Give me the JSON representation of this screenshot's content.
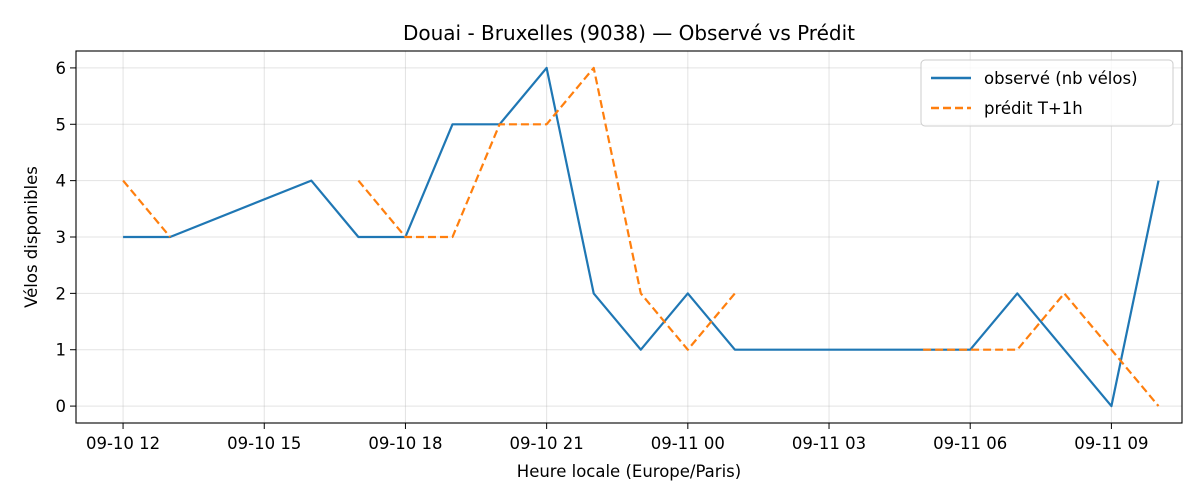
{
  "chart_data": {
    "type": "line",
    "title": "Douai - Bruxelles (9038) — Observé vs Prédit",
    "xlabel": "Heure locale (Europe/Paris)",
    "ylabel": "Vélos disponibles",
    "x_ticks": [
      "09-10 12",
      "09-10 15",
      "09-10 18",
      "09-10 21",
      "09-11 00",
      "09-11 03",
      "09-11 06",
      "09-11 09"
    ],
    "y_ticks": [
      "0",
      "1",
      "2",
      "3",
      "4",
      "5",
      "6"
    ],
    "xlim": [
      "2024-09-10 11:00",
      "2024-09-11 10:30"
    ],
    "ylim": [
      -0.3,
      6.3
    ],
    "grid": true,
    "legend_position": "top-right",
    "series": [
      {
        "name": "observé (nb vélos)",
        "color": "#1f77b4",
        "style": "solid",
        "segments": [
          [
            [
              "2024-09-10 12:00",
              3
            ],
            [
              "2024-09-10 13:00",
              3
            ],
            [
              "2024-09-10 16:00",
              4
            ],
            [
              "2024-09-10 17:00",
              3
            ],
            [
              "2024-09-10 18:00",
              3
            ],
            [
              "2024-09-10 19:00",
              5
            ],
            [
              "2024-09-10 20:00",
              5
            ],
            [
              "2024-09-10 21:00",
              6
            ],
            [
              "2024-09-10 22:00",
              2
            ],
            [
              "2024-09-10 23:00",
              1
            ],
            [
              "2024-09-11 00:00",
              2
            ],
            [
              "2024-09-11 01:00",
              1
            ],
            [
              "2024-09-11 05:00",
              1
            ],
            [
              "2024-09-11 06:00",
              1
            ],
            [
              "2024-09-11 07:00",
              2
            ],
            [
              "2024-09-11 09:00",
              0
            ],
            [
              "2024-09-11 10:00",
              4
            ]
          ]
        ]
      },
      {
        "name": "prédit T+1h",
        "color": "#ff7f0e",
        "style": "dashed",
        "segments": [
          [
            [
              "2024-09-10 12:00",
              4
            ],
            [
              "2024-09-10 13:00",
              3
            ]
          ],
          [
            [
              "2024-09-10 17:00",
              4
            ],
            [
              "2024-09-10 18:00",
              3
            ],
            [
              "2024-09-10 19:00",
              3
            ],
            [
              "2024-09-10 20:00",
              5
            ],
            [
              "2024-09-10 21:00",
              5
            ],
            [
              "2024-09-10 22:00",
              6
            ],
            [
              "2024-09-10 23:00",
              2
            ],
            [
              "2024-09-11 00:00",
              1
            ],
            [
              "2024-09-11 01:00",
              2
            ]
          ],
          [
            [
              "2024-09-11 05:00",
              1
            ],
            [
              "2024-09-11 06:00",
              1
            ],
            [
              "2024-09-11 07:00",
              1
            ],
            [
              "2024-09-11 08:00",
              2
            ],
            [
              "2024-09-11 09:00",
              1
            ],
            [
              "2024-09-11 10:00",
              0
            ]
          ]
        ]
      }
    ]
  }
}
